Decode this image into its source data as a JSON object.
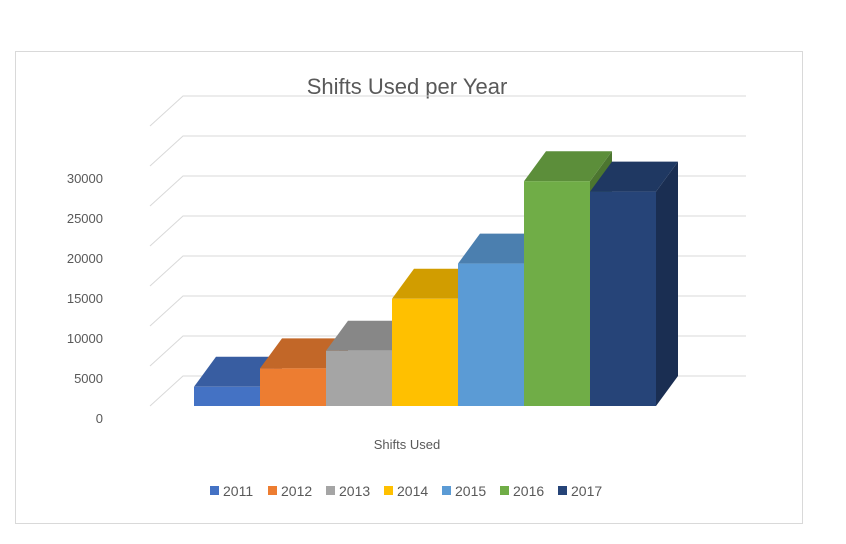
{
  "chart_data": {
    "type": "bar",
    "title": "Shifts Used per Year",
    "xlabel": "Shifts Used",
    "ylabel": "",
    "categories": [
      "Shifts Used"
    ],
    "series": [
      {
        "name": "2011",
        "values": [
          2400
        ],
        "color": "#4472c4"
      },
      {
        "name": "2012",
        "values": [
          4700
        ],
        "color": "#ed7d31"
      },
      {
        "name": "2013",
        "values": [
          6900
        ],
        "color": "#a5a5a5"
      },
      {
        "name": "2014",
        "values": [
          13400
        ],
        "color": "#ffc000"
      },
      {
        "name": "2015",
        "values": [
          17800
        ],
        "color": "#5b9bd5"
      },
      {
        "name": "2016",
        "values": [
          28100
        ],
        "color": "#70ad47"
      },
      {
        "name": "2017",
        "values": [
          26800
        ],
        "color": "#264478"
      }
    ],
    "ylim": [
      0,
      30000
    ],
    "yticks": [
      "0",
      "5000",
      "10000",
      "15000",
      "20000",
      "25000",
      "30000"
    ],
    "grid": true,
    "legend_position": "bottom",
    "style": "3d-column"
  }
}
